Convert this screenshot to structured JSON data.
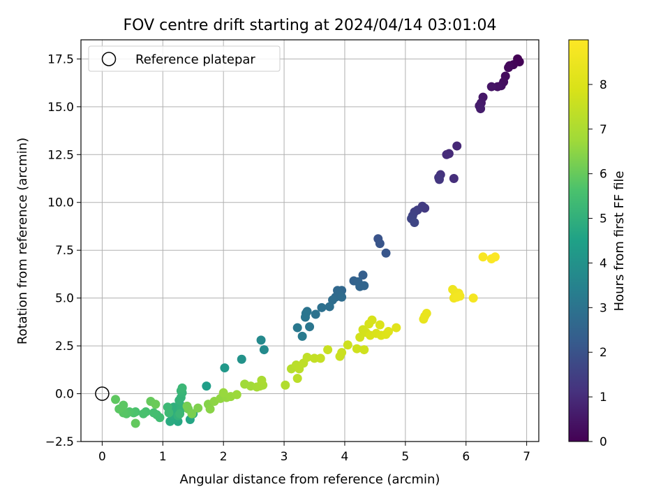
{
  "chart_data": {
    "type": "scatter",
    "title": "FOV centre drift starting at 2024/04/14 03:01:04",
    "xlabel": "Angular distance from reference (arcmin)",
    "ylabel": "Rotation from reference (arcmin)",
    "xlim": [
      -0.35,
      7.2
    ],
    "ylim": [
      -2.5,
      18.5
    ],
    "xticks": [
      0,
      1,
      2,
      3,
      4,
      5,
      6,
      7
    ],
    "xtick_labels": [
      "0",
      "1",
      "2",
      "3",
      "4",
      "5",
      "6",
      "7"
    ],
    "yticks": [
      -2.5,
      0,
      2.5,
      5,
      7.5,
      10,
      12.5,
      15,
      17.5
    ],
    "ytick_labels": [
      "−2.5",
      "0.0",
      "2.5",
      "5.0",
      "7.5",
      "10.0",
      "12.5",
      "15.0",
      "17.5"
    ],
    "grid": true,
    "legend": {
      "position": "top-left",
      "entries": [
        {
          "label": "Reference platepar",
          "marker": "open-circle"
        }
      ]
    },
    "colorbar": {
      "label": "Hours from first FF file",
      "colormap": "viridis",
      "range": [
        0,
        9
      ],
      "ticks": [
        0,
        1,
        2,
        3,
        4,
        5,
        6,
        7,
        8
      ],
      "tick_labels": [
        "0",
        "1",
        "2",
        "3",
        "4",
        "5",
        "6",
        "7",
        "8"
      ]
    },
    "reference_point": {
      "x": 0,
      "y": 0
    },
    "points": [
      [
        6.85,
        17.5,
        0.0
      ],
      [
        6.88,
        17.35,
        0.05
      ],
      [
        6.78,
        17.2,
        0.1
      ],
      [
        6.72,
        17.15,
        0.15
      ],
      [
        6.7,
        17.05,
        0.2
      ],
      [
        6.65,
        16.6,
        0.25
      ],
      [
        6.62,
        16.3,
        0.3
      ],
      [
        6.58,
        16.1,
        0.35
      ],
      [
        6.52,
        16.05,
        0.4
      ],
      [
        6.42,
        16.05,
        0.45
      ],
      [
        6.28,
        15.5,
        0.5
      ],
      [
        6.25,
        15.2,
        0.55
      ],
      [
        6.22,
        15.05,
        0.6
      ],
      [
        6.24,
        14.9,
        0.65
      ],
      [
        5.85,
        12.95,
        0.9
      ],
      [
        5.72,
        12.55,
        0.95
      ],
      [
        5.68,
        12.5,
        1.0
      ],
      [
        5.8,
        11.25,
        1.05
      ],
      [
        5.58,
        11.45,
        1.15
      ],
      [
        5.55,
        11.3,
        1.2
      ],
      [
        5.56,
        11.2,
        1.25
      ],
      [
        5.32,
        9.7,
        1.35
      ],
      [
        5.28,
        9.8,
        1.4
      ],
      [
        5.2,
        9.6,
        1.45
      ],
      [
        5.15,
        9.5,
        1.5
      ],
      [
        5.12,
        9.3,
        1.55
      ],
      [
        5.1,
        9.15,
        1.6
      ],
      [
        5.15,
        8.95,
        1.65
      ],
      [
        4.55,
        8.1,
        2.0
      ],
      [
        4.58,
        7.85,
        2.05
      ],
      [
        4.68,
        7.35,
        2.1
      ],
      [
        4.3,
        6.2,
        2.35
      ],
      [
        4.15,
        5.9,
        2.45
      ],
      [
        4.22,
        5.85,
        2.5
      ],
      [
        4.25,
        5.6,
        2.55
      ],
      [
        4.32,
        5.65,
        2.55
      ],
      [
        3.95,
        5.4,
        2.6
      ],
      [
        3.88,
        5.4,
        2.65
      ],
      [
        3.9,
        5.25,
        2.7
      ],
      [
        3.85,
        5.05,
        2.7
      ],
      [
        3.95,
        5.05,
        2.75
      ],
      [
        3.8,
        4.9,
        2.8
      ],
      [
        3.75,
        4.55,
        2.85
      ],
      [
        3.62,
        4.5,
        2.9
      ],
      [
        3.52,
        4.15,
        2.95
      ],
      [
        3.38,
        4.3,
        3.0
      ],
      [
        3.36,
        4.2,
        3.05
      ],
      [
        3.35,
        4.0,
        3.05
      ],
      [
        3.42,
        3.5,
        3.1
      ],
      [
        3.22,
        3.45,
        3.15
      ],
      [
        3.3,
        3.0,
        3.2
      ],
      [
        2.62,
        2.8,
        3.7
      ],
      [
        2.67,
        2.3,
        3.75
      ],
      [
        2.3,
        1.8,
        4.0
      ],
      [
        2.02,
        1.35,
        4.2
      ],
      [
        1.72,
        0.4,
        4.4
      ],
      [
        1.5,
        -1.05,
        4.6
      ],
      [
        1.45,
        -1.35,
        4.65
      ],
      [
        1.25,
        -1.45,
        4.7
      ],
      [
        1.2,
        -1.3,
        4.75
      ],
      [
        1.12,
        -1.45,
        4.8
      ],
      [
        1.15,
        -1.1,
        4.85
      ],
      [
        1.22,
        -0.9,
        4.9
      ],
      [
        1.18,
        -0.7,
        4.95
      ],
      [
        1.28,
        -0.55,
        5.0
      ],
      [
        1.3,
        -0.8,
        5.05
      ],
      [
        1.25,
        -1.15,
        5.05
      ],
      [
        1.27,
        -0.35,
        5.1
      ],
      [
        1.3,
        -0.2,
        5.1
      ],
      [
        1.32,
        0.05,
        5.15
      ],
      [
        1.3,
        0.15,
        5.2
      ],
      [
        1.32,
        0.3,
        5.25
      ],
      [
        1.28,
        -1.05,
        5.25
      ],
      [
        1.08,
        -0.7,
        5.3
      ],
      [
        1.1,
        -1.0,
        5.35
      ],
      [
        0.95,
        -1.25,
        5.4
      ],
      [
        0.9,
        -1.1,
        5.45
      ],
      [
        0.85,
        -1.0,
        5.5
      ],
      [
        0.72,
        -0.95,
        5.55
      ],
      [
        0.68,
        -1.05,
        5.6
      ],
      [
        0.55,
        -0.95,
        5.6
      ],
      [
        0.52,
        -1.0,
        5.65
      ],
      [
        0.45,
        -0.95,
        5.7
      ],
      [
        0.4,
        -1.05,
        5.75
      ],
      [
        0.35,
        -1.0,
        5.8
      ],
      [
        0.28,
        -0.8,
        5.85
      ],
      [
        0.35,
        -0.6,
        5.85
      ],
      [
        0.22,
        -0.3,
        5.9
      ],
      [
        0.55,
        -1.55,
        5.95
      ],
      [
        0.8,
        -0.4,
        6.0
      ],
      [
        0.88,
        -0.55,
        6.05
      ],
      [
        1.42,
        -0.8,
        6.15
      ],
      [
        1.4,
        -0.65,
        6.2
      ],
      [
        1.48,
        -1.05,
        6.25
      ],
      [
        1.58,
        -0.75,
        6.3
      ],
      [
        1.75,
        -0.55,
        6.4
      ],
      [
        1.78,
        -0.8,
        6.45
      ],
      [
        1.85,
        -0.4,
        6.5
      ],
      [
        1.95,
        -0.25,
        6.55
      ],
      [
        2.05,
        -0.2,
        6.6
      ],
      [
        2.0,
        0.05,
        6.65
      ],
      [
        2.12,
        -0.15,
        6.65
      ],
      [
        2.22,
        -0.05,
        6.7
      ],
      [
        2.35,
        0.5,
        6.75
      ],
      [
        2.45,
        0.4,
        6.8
      ],
      [
        2.55,
        0.35,
        6.85
      ],
      [
        2.6,
        0.4,
        6.9
      ],
      [
        2.65,
        0.45,
        6.9
      ],
      [
        2.63,
        0.7,
        6.95
      ],
      [
        3.02,
        0.45,
        7.1
      ],
      [
        3.12,
        1.3,
        7.2
      ],
      [
        3.2,
        1.5,
        7.25
      ],
      [
        3.25,
        1.3,
        7.3
      ],
      [
        3.22,
        0.8,
        7.3
      ],
      [
        3.32,
        1.6,
        7.35
      ],
      [
        3.38,
        1.9,
        7.4
      ],
      [
        3.5,
        1.85,
        7.45
      ],
      [
        3.6,
        1.85,
        7.5
      ],
      [
        3.72,
        2.3,
        7.55
      ],
      [
        3.92,
        1.95,
        7.6
      ],
      [
        3.95,
        2.15,
        7.6
      ],
      [
        4.05,
        2.55,
        7.65
      ],
      [
        4.2,
        2.35,
        7.7
      ],
      [
        4.32,
        2.3,
        7.7
      ],
      [
        4.25,
        2.95,
        7.75
      ],
      [
        4.3,
        3.35,
        7.75
      ],
      [
        4.35,
        3.2,
        7.8
      ],
      [
        4.4,
        3.65,
        7.85
      ],
      [
        4.45,
        3.85,
        7.85
      ],
      [
        4.42,
        3.05,
        7.9
      ],
      [
        4.52,
        3.15,
        7.95
      ],
      [
        4.58,
        3.6,
        8.0
      ],
      [
        4.6,
        3.05,
        8.0
      ],
      [
        4.68,
        3.1,
        8.05
      ],
      [
        4.72,
        3.25,
        8.1
      ],
      [
        4.85,
        3.45,
        8.15
      ],
      [
        5.3,
        3.9,
        8.35
      ],
      [
        5.32,
        4.05,
        8.4
      ],
      [
        5.35,
        4.2,
        8.4
      ],
      [
        5.78,
        5.45,
        8.55
      ],
      [
        5.82,
        5.3,
        8.6
      ],
      [
        5.88,
        5.25,
        8.65
      ],
      [
        5.8,
        5.0,
        8.65
      ],
      [
        5.85,
        5.05,
        8.7
      ],
      [
        5.9,
        5.1,
        8.7
      ],
      [
        6.12,
        5.0,
        8.75
      ],
      [
        6.28,
        7.15,
        8.85
      ],
      [
        6.42,
        7.05,
        8.9
      ],
      [
        6.48,
        7.15,
        8.95
      ]
    ]
  }
}
